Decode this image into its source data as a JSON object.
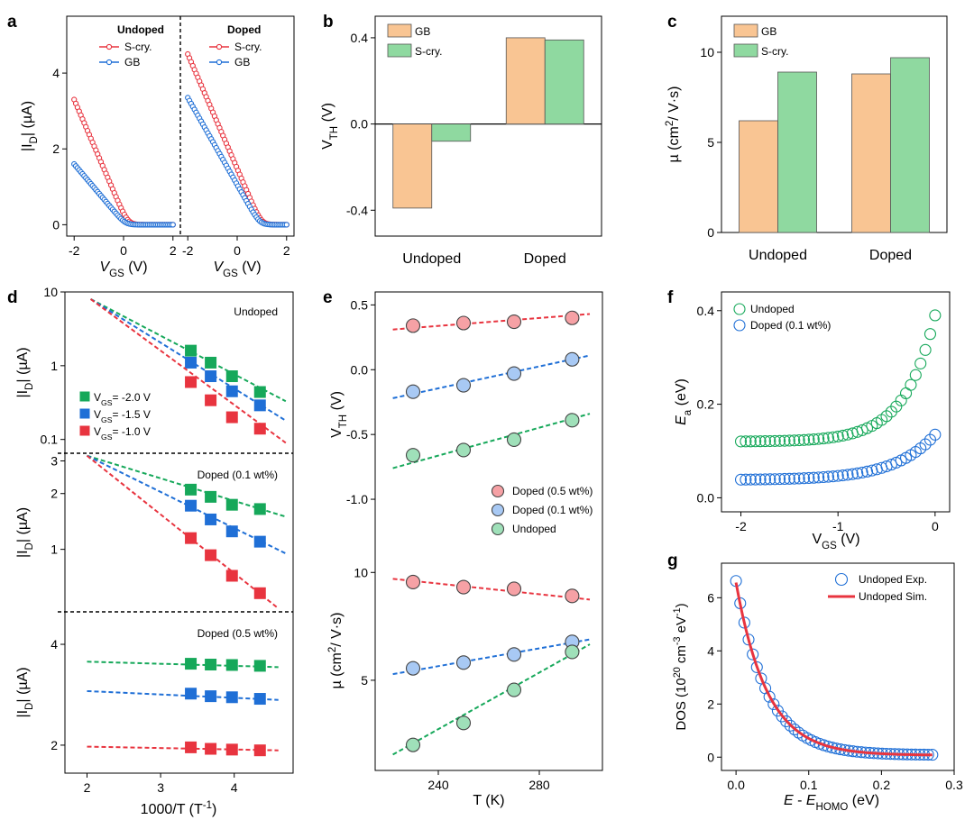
{
  "colors": {
    "red": "#e8343f",
    "blue": "#1f6fd6",
    "green": "#16a85a",
    "orange": "#f9c593",
    "lightgreen": "#8fd9a0",
    "frame": "#000000"
  },
  "panel_labels": {
    "a": "a",
    "b": "b",
    "c": "c",
    "d": "d",
    "e": "e",
    "f": "f",
    "g": "g"
  },
  "chart_data": [
    {
      "id": "a",
      "type": "scatter",
      "ylabel": "|I_D| (µA)",
      "xlabel": "V_GS (V)",
      "xlim": [
        -2.3,
        2.3
      ],
      "ylim": [
        -0.3,
        5.5
      ],
      "xticks": [
        -2,
        0,
        2
      ],
      "yticks": [
        0,
        2,
        4
      ],
      "subplots": [
        {
          "title": "Undoped",
          "series": [
            {
              "name": "S-cry.",
              "color": "red",
              "x0": -2,
              "x1": 2,
              "max": 3.3,
              "vth": 0.18,
              "n": 60
            },
            {
              "name": "GB",
              "color": "blue",
              "x0": -2,
              "x1": 2,
              "max": 1.6,
              "vth": 0.08,
              "n": 60
            }
          ]
        },
        {
          "title": "Doped",
          "series": [
            {
              "name": "S-cry.",
              "color": "red",
              "x0": -2,
              "x1": 2,
              "max": 4.5,
              "vth": 0.98,
              "n": 60
            },
            {
              "name": "GB",
              "color": "blue",
              "x0": -2,
              "x1": 2,
              "max": 3.35,
              "vth": 0.92,
              "n": 60
            }
          ]
        }
      ]
    },
    {
      "id": "b",
      "type": "bar",
      "ylabel": "V_TH (V)",
      "categories": [
        "Undoped",
        "Doped"
      ],
      "ylim": [
        -0.52,
        0.5
      ],
      "yticks": [
        -0.4,
        0.0,
        0.4
      ],
      "yticklabels": [
        "-0.4",
        "0.0",
        "0.4"
      ],
      "series": [
        {
          "name": "GB",
          "color": "orange",
          "values": [
            -0.39,
            0.4
          ]
        },
        {
          "name": "S-cry.",
          "color": "lightgreen",
          "values": [
            -0.08,
            0.39
          ]
        }
      ]
    },
    {
      "id": "c",
      "type": "bar",
      "ylabel": "µ (cm²/ V·s)",
      "categories": [
        "Undoped",
        "Doped"
      ],
      "ylim": [
        0,
        12
      ],
      "yticks": [
        0,
        5,
        10
      ],
      "yticklabels": [
        "0",
        "5",
        "10"
      ],
      "series": [
        {
          "name": "GB",
          "color": "orange",
          "values": [
            6.2,
            8.8
          ]
        },
        {
          "name": "S-cry.",
          "color": "lightgreen",
          "values": [
            8.9,
            9.7
          ]
        }
      ]
    },
    {
      "id": "d",
      "type": "scatter",
      "xlabel": "1000/T (T⁻¹)",
      "xlim": [
        1.7,
        4.8
      ],
      "xticks": [
        2,
        3,
        4
      ],
      "subplots": [
        {
          "title": "Undoped",
          "ylabel": "|I_D| (µA)",
          "log": true,
          "ylim": [
            0.065,
            10
          ],
          "yticks": [
            0.1,
            1,
            10
          ],
          "yticklabels": [
            "0.1",
            "1",
            "10"
          ],
          "legend": [
            "V_GS= -2.0 V",
            "V_GS= -1.5 V",
            "V_GS= -1.0 V"
          ],
          "series": [
            {
              "name": "V_GS= -2.0 V",
              "color": "green",
              "x": [
                3.41,
                3.68,
                3.97,
                4.35
              ],
              "y": [
                1.6,
                1.1,
                0.72,
                0.44
              ],
              "fit": [
                [
                  2.05,
                  8.0
                ],
                [
                  4.7,
                  0.33
                ]
              ]
            },
            {
              "name": "V_GS= -1.5 V",
              "color": "blue",
              "x": [
                3.41,
                3.68,
                3.97,
                4.35
              ],
              "y": [
                1.1,
                0.72,
                0.45,
                0.29
              ],
              "fit": [
                [
                  2.05,
                  8.0
                ],
                [
                  4.7,
                  0.18
                ]
              ]
            },
            {
              "name": "V_GS= -1.0 V",
              "color": "red",
              "x": [
                3.41,
                3.68,
                3.97,
                4.35
              ],
              "y": [
                0.6,
                0.34,
                0.2,
                0.14
              ],
              "fit": [
                [
                  2.05,
                  8.0
                ],
                [
                  4.7,
                  0.09
                ]
              ]
            }
          ]
        },
        {
          "title": "Doped (0.1 wt%)",
          "ylabel": "|I_D| (µA)",
          "log": true,
          "ylim": [
            0.46,
            3.3
          ],
          "yticks": [
            1,
            2,
            3
          ],
          "yticklabels": [
            "1",
            "2",
            "3"
          ],
          "series": [
            {
              "color": "green",
              "x": [
                3.41,
                3.68,
                3.97,
                4.35
              ],
              "y": [
                2.1,
                1.92,
                1.74,
                1.65
              ],
              "fit": [
                [
                  2.0,
                  3.2
                ],
                [
                  4.7,
                  1.5
                ]
              ]
            },
            {
              "color": "blue",
              "x": [
                3.41,
                3.68,
                3.97,
                4.35
              ],
              "y": [
                1.72,
                1.45,
                1.25,
                1.1
              ],
              "fit": [
                [
                  2.0,
                  3.2
                ],
                [
                  4.7,
                  0.95
                ]
              ]
            },
            {
              "color": "red",
              "x": [
                3.41,
                3.68,
                3.97,
                4.35
              ],
              "y": [
                1.15,
                0.93,
                0.72,
                0.58
              ],
              "fit": [
                [
                  2.0,
                  3.2
                ],
                [
                  4.6,
                  0.48
                ]
              ]
            }
          ]
        },
        {
          "title": "Doped (0.5 wt%)",
          "ylabel": "|I_D| (µA)",
          "log": true,
          "ylim": [
            1.65,
            5.0
          ],
          "yticks": [
            2,
            4
          ],
          "yticklabels": [
            "2",
            "4"
          ],
          "series": [
            {
              "color": "green",
              "x": [
                3.41,
                3.68,
                3.97,
                4.35
              ],
              "y": [
                3.5,
                3.48,
                3.47,
                3.45
              ],
              "fit": [
                [
                  2.0,
                  3.55
                ],
                [
                  4.6,
                  3.42
                ]
              ]
            },
            {
              "color": "blue",
              "x": [
                3.41,
                3.68,
                3.97,
                4.35
              ],
              "y": [
                2.85,
                2.8,
                2.78,
                2.75
              ],
              "fit": [
                [
                  2.0,
                  2.9
                ],
                [
                  4.6,
                  2.73
                ]
              ]
            },
            {
              "color": "red",
              "x": [
                3.41,
                3.68,
                3.97,
                4.35
              ],
              "y": [
                1.97,
                1.95,
                1.94,
                1.93
              ],
              "fit": [
                [
                  2.0,
                  1.98
                ],
                [
                  4.6,
                  1.93
                ]
              ]
            }
          ]
        }
      ]
    },
    {
      "id": "e",
      "type": "scatter",
      "xlabel": "T (K)",
      "xlim": [
        215,
        305
      ],
      "xticks": [
        240,
        280
      ],
      "legend": [
        "Doped (0.5 wt%)",
        "Doped (0.1 wt%)",
        "Undoped"
      ],
      "subplots": [
        {
          "ylabel": "V_TH (V)",
          "ylim": [
            -1.25,
            0.6
          ],
          "yticks": [
            -1.0,
            -0.5,
            0.0,
            0.5
          ],
          "yticklabels": [
            "-1.0",
            "-0.5",
            "0.0",
            "0.5"
          ],
          "series": [
            {
              "name": "Doped (0.5 wt%)",
              "color": "red",
              "x": [
                230,
                250,
                270,
                293
              ],
              "y": [
                0.34,
                0.36,
                0.37,
                0.4
              ],
              "fit": [
                [
                  222,
                  0.31
                ],
                [
                  300,
                  0.43
                ]
              ]
            },
            {
              "name": "Doped (0.1 wt%)",
              "color": "blue",
              "x": [
                230,
                250,
                270,
                293
              ],
              "y": [
                -0.17,
                -0.12,
                -0.03,
                0.08
              ],
              "fit": [
                [
                  222,
                  -0.22
                ],
                [
                  300,
                  0.11
                ]
              ]
            },
            {
              "name": "Undoped",
              "color": "green",
              "x": [
                230,
                250,
                270,
                293
              ],
              "y": [
                -0.66,
                -0.62,
                -0.54,
                -0.39
              ],
              "fit": [
                [
                  222,
                  -0.76
                ],
                [
                  300,
                  -0.34
                ]
              ]
            }
          ]
        },
        {
          "ylabel": "µ (cm²/ V·s)",
          "log": true,
          "ylim": [
            2.8,
            13
          ],
          "yticks": [
            5,
            10
          ],
          "yticklabels": [
            "5",
            "10"
          ],
          "series": [
            {
              "color": "red",
              "x": [
                230,
                250,
                270,
                293
              ],
              "y": [
                9.4,
                9.1,
                9.0,
                8.6
              ],
              "fit": [
                [
                  222,
                  9.6
                ],
                [
                  300,
                  8.4
                ]
              ]
            },
            {
              "color": "blue",
              "x": [
                230,
                250,
                270,
                293
              ],
              "y": [
                5.4,
                5.6,
                5.9,
                6.4
              ],
              "fit": [
                [
                  222,
                  5.2
                ],
                [
                  300,
                  6.5
                ]
              ]
            },
            {
              "color": "green",
              "x": [
                230,
                250,
                270,
                293
              ],
              "y": [
                3.3,
                3.8,
                4.7,
                6.0
              ],
              "fit": [
                [
                  222,
                  3.1
                ],
                [
                  300,
                  6.3
                ]
              ]
            }
          ]
        }
      ]
    },
    {
      "id": "f",
      "type": "scatter",
      "xlabel": "V_GS (V)",
      "ylabel": "E_a (eV)",
      "xlim": [
        -2.2,
        0.15
      ],
      "ylim": [
        -0.03,
        0.44
      ],
      "xticks": [
        -2,
        -1,
        0
      ],
      "yticks": [
        0.0,
        0.2,
        0.4
      ],
      "yticklabels": [
        "0.0",
        "0.2",
        "0.4"
      ],
      "series": [
        {
          "name": "Undoped",
          "color": "green",
          "x0": -2,
          "x1": 0,
          "n": 41,
          "base": 0.12,
          "amp": 0.27,
          "k": 3.2
        },
        {
          "name": "Doped (0.1 wt%)",
          "color": "blue",
          "x0": -2,
          "x1": 0,
          "n": 41,
          "base": 0.038,
          "amp": 0.097,
          "k": 2.4
        }
      ]
    },
    {
      "id": "g",
      "type": "line",
      "xlabel": "E - E_HOMO (eV)",
      "ylabel": "DOS (10²⁰ cm⁻³ eV⁻¹)",
      "xlim": [
        -0.02,
        0.3
      ],
      "ylim": [
        -0.5,
        7.3
      ],
      "xticks": [
        0.0,
        0.1,
        0.2,
        0.3
      ],
      "yticks": [
        0,
        2,
        4,
        6
      ],
      "xticklabels": [
        "0.0",
        "0.1",
        "0.2",
        "0.3"
      ],
      "yticklabels": [
        "0",
        "2",
        "4",
        "6"
      ],
      "series": [
        {
          "name": "Undoped   Exp.",
          "color": "blue",
          "marker": "circle",
          "x0": 0,
          "x1": 0.27,
          "n": 48,
          "a": 6.55,
          "tau": 0.042,
          "c": 0.08
        },
        {
          "name": "Undoped   Sim.",
          "color": "red",
          "marker": "line",
          "x0": 0,
          "x1": 0.27,
          "n": 60,
          "a": 6.5,
          "tau": 0.043,
          "c": 0.07
        }
      ]
    }
  ]
}
